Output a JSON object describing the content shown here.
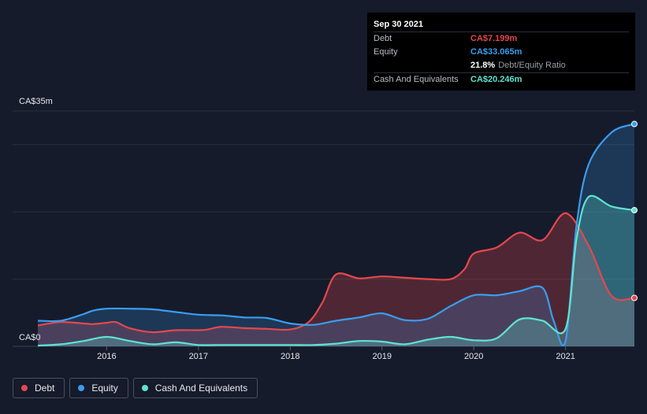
{
  "tooltip": {
    "date": "Sep 30 2021",
    "rows": [
      {
        "label": "Debt",
        "value": "CA$7.199m",
        "color": "#e5484d"
      },
      {
        "label": "Equity",
        "value": "CA$33.065m",
        "color": "#3a9df0"
      },
      {
        "label": "",
        "value": "21.8%",
        "extra": "Debt/Equity Ratio",
        "color": "#ffffff"
      },
      {
        "label": "Cash And Equivalents",
        "value": "CA$20.246m",
        "color": "#5fe3cf"
      }
    ]
  },
  "legend": [
    {
      "label": "Debt",
      "color": "#e5484d"
    },
    {
      "label": "Equity",
      "color": "#3a9df0"
    },
    {
      "label": "Cash And Equivalents",
      "color": "#5fe3cf"
    }
  ],
  "chart_data": {
    "type": "area",
    "title": "",
    "xlabel": "",
    "ylabel": "",
    "y_top_label": "CA$35m",
    "y_bottom_label": "CA$0",
    "ylim": [
      0,
      35
    ],
    "xlim": [
      2015.25,
      2021.75
    ],
    "x_ticks": [
      2016,
      2017,
      2018,
      2019,
      2020,
      2021
    ],
    "x_tick_labels": [
      "2016",
      "2017",
      "2018",
      "2019",
      "2020",
      "2021"
    ],
    "y_gridlines": [
      0,
      10,
      20,
      30,
      35
    ],
    "series": [
      {
        "name": "Debt",
        "color": "#e5484d",
        "points": [
          [
            2015.25,
            3.1
          ],
          [
            2015.5,
            3.6
          ],
          [
            2015.75,
            3.4
          ],
          [
            2015.85,
            3.3
          ],
          [
            2016.0,
            3.5
          ],
          [
            2016.1,
            3.6
          ],
          [
            2016.25,
            2.7
          ],
          [
            2016.5,
            2.1
          ],
          [
            2016.75,
            2.4
          ],
          [
            2017.0,
            2.4
          ],
          [
            2017.1,
            2.5
          ],
          [
            2017.25,
            2.9
          ],
          [
            2017.5,
            2.7
          ],
          [
            2017.75,
            2.6
          ],
          [
            2018.0,
            2.5
          ],
          [
            2018.2,
            3.6
          ],
          [
            2018.35,
            6.5
          ],
          [
            2018.5,
            10.7
          ],
          [
            2018.75,
            10.1
          ],
          [
            2019.0,
            10.4
          ],
          [
            2019.25,
            10.2
          ],
          [
            2019.5,
            10.0
          ],
          [
            2019.75,
            10.0
          ],
          [
            2019.9,
            11.5
          ],
          [
            2020.0,
            13.8
          ],
          [
            2020.25,
            14.7
          ],
          [
            2020.5,
            16.9
          ],
          [
            2020.75,
            15.8
          ],
          [
            2021.0,
            19.8
          ],
          [
            2021.25,
            15.0
          ],
          [
            2021.5,
            7.5
          ],
          [
            2021.75,
            7.199
          ]
        ]
      },
      {
        "name": "Equity",
        "color": "#3a9df0",
        "points": [
          [
            2015.25,
            3.8
          ],
          [
            2015.5,
            3.8
          ],
          [
            2015.75,
            4.8
          ],
          [
            2015.85,
            5.3
          ],
          [
            2016.0,
            5.6
          ],
          [
            2016.25,
            5.6
          ],
          [
            2016.5,
            5.5
          ],
          [
            2016.75,
            5.1
          ],
          [
            2017.0,
            4.7
          ],
          [
            2017.25,
            4.6
          ],
          [
            2017.5,
            4.3
          ],
          [
            2017.75,
            4.2
          ],
          [
            2018.0,
            3.4
          ],
          [
            2018.25,
            3.2
          ],
          [
            2018.5,
            3.8
          ],
          [
            2018.75,
            4.3
          ],
          [
            2019.0,
            4.9
          ],
          [
            2019.25,
            3.9
          ],
          [
            2019.5,
            4.1
          ],
          [
            2019.75,
            6.0
          ],
          [
            2020.0,
            7.6
          ],
          [
            2020.25,
            7.6
          ],
          [
            2020.5,
            8.2
          ],
          [
            2020.75,
            8.7
          ],
          [
            2020.87,
            3.8
          ],
          [
            2021.0,
            0.8
          ],
          [
            2021.12,
            18.0
          ],
          [
            2021.25,
            27.0
          ],
          [
            2021.5,
            31.8
          ],
          [
            2021.75,
            33.065
          ]
        ]
      },
      {
        "name": "Cash And Equivalents",
        "color": "#5fe3cf",
        "points": [
          [
            2015.25,
            0.1
          ],
          [
            2015.5,
            0.3
          ],
          [
            2015.75,
            0.8
          ],
          [
            2016.0,
            1.4
          ],
          [
            2016.25,
            0.8
          ],
          [
            2016.5,
            0.3
          ],
          [
            2016.75,
            0.6
          ],
          [
            2017.0,
            0.2
          ],
          [
            2017.25,
            0.2
          ],
          [
            2017.5,
            0.2
          ],
          [
            2017.75,
            0.2
          ],
          [
            2018.0,
            0.2
          ],
          [
            2018.25,
            0.2
          ],
          [
            2018.5,
            0.4
          ],
          [
            2018.75,
            0.8
          ],
          [
            2019.0,
            0.7
          ],
          [
            2019.25,
            0.3
          ],
          [
            2019.5,
            1.0
          ],
          [
            2019.75,
            1.4
          ],
          [
            2020.0,
            0.9
          ],
          [
            2020.25,
            1.2
          ],
          [
            2020.5,
            4.0
          ],
          [
            2020.75,
            3.8
          ],
          [
            2021.0,
            2.6
          ],
          [
            2021.12,
            16.0
          ],
          [
            2021.25,
            22.2
          ],
          [
            2021.5,
            20.8
          ],
          [
            2021.75,
            20.246
          ]
        ]
      }
    ]
  }
}
